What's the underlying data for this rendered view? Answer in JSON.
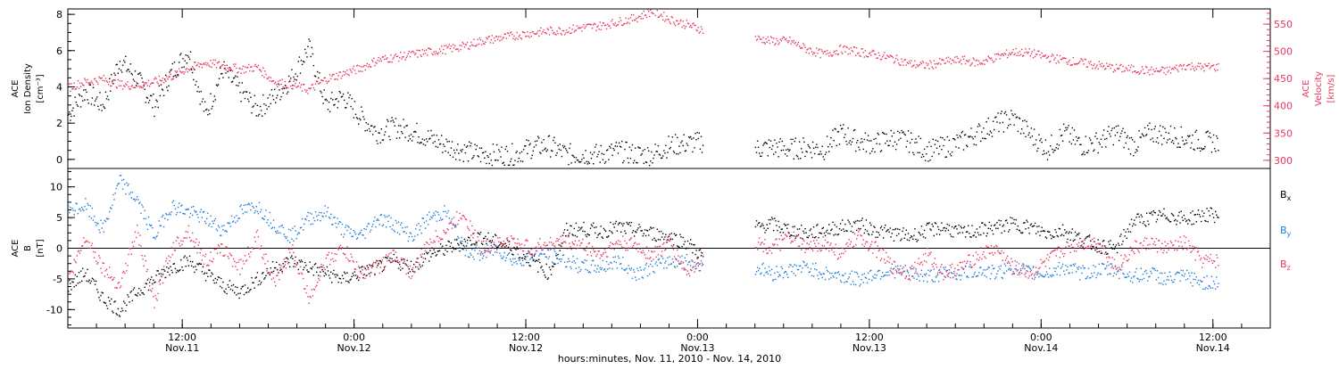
{
  "chart_data": [
    {
      "type": "scatter",
      "panel": "top",
      "ylabel_lines": [
        "ACE",
        "Ion Density",
        "[cm⁻³]"
      ],
      "ylim": [
        -0.5,
        8.3
      ],
      "yticks": [
        0,
        2,
        4,
        6,
        8
      ],
      "right_axis": {
        "label_lines": [
          "ACE",
          "Velocity",
          "[km/s]"
        ],
        "ylim": [
          285,
          578
        ],
        "yticks": [
          300,
          350,
          400,
          450,
          500,
          550
        ],
        "color": "#e8365d"
      },
      "series": [
        {
          "name": "",
          "color": "#000000",
          "axis": "left",
          "x": [
            0,
            0.05,
            0.1,
            0.15,
            0.2,
            0.25,
            0.3,
            0.35,
            0.4,
            0.45,
            0.5,
            0.55,
            0.6,
            0.65,
            0.7,
            0.75,
            0.8,
            0.85,
            0.9,
            0.95,
            1.0,
            1.05,
            1.1,
            1.15,
            1.2,
            1.25,
            1.3,
            1.35,
            1.4,
            1.45,
            1.5,
            1.55,
            1.6,
            1.65,
            1.7,
            1.75,
            1.8,
            1.85,
            2.0,
            2.05,
            2.1,
            2.15,
            2.2,
            2.25,
            2.3,
            2.35,
            2.4,
            2.45,
            2.5,
            2.55,
            2.6,
            2.65,
            2.7,
            2.75,
            2.8,
            2.85,
            2.9,
            2.95,
            3.0,
            3.05,
            3.1,
            3.15,
            3.2,
            3.25,
            3.3
          ],
          "y": [
            2.5,
            3.8,
            3.0,
            5.5,
            4.5,
            3.0,
            4.8,
            6.0,
            2.5,
            5.0,
            3.8,
            2.8,
            3.5,
            4.5,
            6.2,
            3.0,
            3.5,
            2.4,
            1.5,
            1.8,
            1.6,
            1.2,
            0.8,
            0.5,
            0.3,
            0.3,
            0.3,
            0.7,
            0.8,
            0.3,
            0.3,
            0.3,
            0.5,
            0.3,
            0.3,
            0.8,
            0.9,
            1.0,
            0.6,
            0.7,
            0.6,
            0.7,
            0.6,
            1.5,
            1.0,
            0.9,
            1.2,
            1.0,
            0.5,
            0.7,
            1.0,
            1.5,
            2.0,
            2.3,
            1.4,
            0.6,
            1.5,
            0.8,
            1.0,
            1.5,
            0.8,
            1.5,
            1.4,
            1.2,
            1.0
          ]
        },
        {
          "name": "",
          "color": "#e8365d",
          "axis": "right",
          "x": [
            0,
            0.05,
            0.1,
            0.15,
            0.2,
            0.25,
            0.3,
            0.35,
            0.4,
            0.45,
            0.5,
            0.55,
            0.6,
            0.65,
            0.7,
            0.75,
            0.8,
            0.85,
            0.9,
            0.95,
            1.0,
            1.05,
            1.1,
            1.15,
            1.2,
            1.25,
            1.3,
            1.35,
            1.4,
            1.45,
            1.5,
            1.55,
            1.6,
            1.65,
            1.7,
            1.75,
            1.8,
            1.85,
            2.0,
            2.05,
            2.1,
            2.15,
            2.2,
            2.25,
            2.3,
            2.35,
            2.4,
            2.45,
            2.5,
            2.55,
            2.6,
            2.65,
            2.7,
            2.75,
            2.8,
            2.85,
            2.9,
            2.95,
            3.0,
            3.05,
            3.1,
            3.15,
            3.2,
            3.25,
            3.3
          ],
          "y": [
            435,
            445,
            450,
            440,
            438,
            445,
            455,
            470,
            480,
            475,
            468,
            472,
            445,
            440,
            430,
            450,
            460,
            470,
            485,
            490,
            495,
            500,
            505,
            510,
            520,
            525,
            530,
            535,
            538,
            540,
            545,
            548,
            555,
            562,
            575,
            560,
            550,
            540,
            525,
            520,
            520,
            505,
            495,
            505,
            500,
            495,
            488,
            478,
            475,
            482,
            485,
            480,
            490,
            500,
            498,
            490,
            485,
            480,
            475,
            470,
            468,
            465,
            465,
            475,
            472
          ]
        }
      ],
      "gaps": [
        [
          1.85,
          2.0
        ]
      ]
    },
    {
      "type": "scatter",
      "panel": "bottom",
      "ylabel_lines": [
        "ACE",
        "B",
        "[nT]"
      ],
      "ylim": [
        -13,
        13
      ],
      "yticks": [
        -10,
        -5,
        0,
        5,
        10
      ],
      "zero_line": true,
      "series": [
        {
          "name": "Bₓ",
          "legend_main": "B",
          "legend_sub": "x",
          "color": "#000000",
          "x": [
            0,
            0.05,
            0.1,
            0.15,
            0.2,
            0.25,
            0.3,
            0.35,
            0.4,
            0.45,
            0.5,
            0.55,
            0.6,
            0.65,
            0.7,
            0.75,
            0.8,
            0.85,
            0.9,
            0.95,
            1.0,
            1.05,
            1.1,
            1.15,
            1.2,
            1.25,
            1.3,
            1.35,
            1.4,
            1.45,
            1.5,
            1.55,
            1.6,
            1.65,
            1.7,
            1.75,
            1.8,
            1.85,
            2.0,
            2.05,
            2.1,
            2.15,
            2.2,
            2.25,
            2.3,
            2.35,
            2.4,
            2.45,
            2.5,
            2.55,
            2.6,
            2.65,
            2.7,
            2.75,
            2.8,
            2.85,
            2.9,
            2.95,
            3.0,
            3.05,
            3.1,
            3.15,
            3.2,
            3.25,
            3.3
          ],
          "y": [
            -6,
            -4,
            -8,
            -10,
            -7,
            -5,
            -3,
            -2,
            -4,
            -6,
            -7,
            -5,
            -3,
            -2,
            -3,
            -4,
            -5,
            -4,
            -3,
            -2,
            -3,
            -1,
            0,
            1,
            2,
            1,
            0,
            -2,
            -4,
            3,
            3.2,
            2.8,
            3.5,
            3.0,
            2.5,
            2.0,
            1.0,
            -1.5,
            3.5,
            4.0,
            3.0,
            2.5,
            3.0,
            3.5,
            4.0,
            3.0,
            2.5,
            2.0,
            3.0,
            3.5,
            2.5,
            3.0,
            3.5,
            4.0,
            3.5,
            2.5,
            3.0,
            1.5,
            0.5,
            0.0,
            4.5,
            5.0,
            5.5,
            4.8,
            5.5
          ]
        },
        {
          "name": "Bᵧ",
          "legend_main": "B",
          "legend_sub": "y",
          "color": "#1e7ad6",
          "x": [
            0,
            0.05,
            0.1,
            0.15,
            0.2,
            0.25,
            0.3,
            0.35,
            0.4,
            0.45,
            0.5,
            0.55,
            0.6,
            0.65,
            0.7,
            0.75,
            0.8,
            0.85,
            0.9,
            0.95,
            1.0,
            1.05,
            1.1,
            1.15,
            1.2,
            1.25,
            1.3,
            1.35,
            1.4,
            1.45,
            1.5,
            1.55,
            1.6,
            1.65,
            1.7,
            1.75,
            1.8,
            1.85,
            2.0,
            2.05,
            2.1,
            2.15,
            2.2,
            2.25,
            2.3,
            2.35,
            2.4,
            2.45,
            2.5,
            2.55,
            2.6,
            2.65,
            2.7,
            2.75,
            2.8,
            2.85,
            2.9,
            2.95,
            3.0,
            3.05,
            3.1,
            3.15,
            3.2,
            3.25,
            3.3
          ],
          "y": [
            6,
            7,
            3,
            11,
            8,
            2,
            7,
            6,
            5,
            3,
            6,
            7,
            4,
            2,
            5,
            6,
            3,
            2,
            5,
            4,
            2,
            5,
            6,
            0,
            -1,
            0,
            -2,
            -1,
            -1,
            -2,
            -3,
            -3,
            -2,
            -4,
            -3,
            -2,
            -2,
            -3,
            -3,
            -4,
            -3.5,
            -3,
            -4,
            -4.5,
            -5,
            -4,
            -3.5,
            -4,
            -4.5,
            -4,
            -4,
            -3.5,
            -4,
            -3,
            -4,
            -4,
            -3,
            -4,
            -3.5,
            -3.5,
            -4.5,
            -4.0,
            -5.0,
            -4.5,
            -5.5
          ]
        },
        {
          "name": "Bᴢ",
          "legend_main": "B",
          "legend_sub": "z",
          "color": "#e8365d",
          "x": [
            0,
            0.05,
            0.1,
            0.15,
            0.2,
            0.25,
            0.3,
            0.35,
            0.4,
            0.45,
            0.5,
            0.55,
            0.6,
            0.65,
            0.7,
            0.75,
            0.8,
            0.85,
            0.9,
            0.95,
            1.0,
            1.05,
            1.1,
            1.15,
            1.2,
            1.25,
            1.3,
            1.35,
            1.4,
            1.45,
            1.5,
            1.55,
            1.6,
            1.65,
            1.7,
            1.75,
            1.8,
            1.85,
            2.0,
            2.05,
            2.1,
            2.15,
            2.2,
            2.25,
            2.3,
            2.35,
            2.4,
            2.45,
            2.5,
            2.55,
            2.6,
            2.65,
            2.7,
            2.75,
            2.8,
            2.85,
            2.9,
            2.95,
            3.0,
            3.05,
            3.1,
            3.15,
            3.2,
            3.25,
            3.3
          ],
          "y": [
            -5,
            2,
            -3,
            -6,
            3,
            -9,
            0,
            3,
            -2,
            0,
            -3,
            2,
            -6,
            0,
            -8,
            -2,
            0,
            -4,
            -3,
            -1,
            -4,
            1,
            3,
            6,
            0,
            1,
            1,
            0,
            1,
            1,
            0.5,
            -1,
            1,
            0.5,
            -1,
            1,
            -4,
            -1,
            1,
            0,
            2,
            0,
            1,
            -1,
            2,
            0,
            -3,
            -4,
            -1,
            -4,
            -3,
            -1,
            0,
            -3,
            -4,
            -2,
            0,
            1,
            1,
            -3,
            0,
            1,
            0,
            1,
            -2
          ]
        }
      ],
      "gaps": [
        [
          1.85,
          2.0
        ]
      ]
    }
  ],
  "x_axis": {
    "tick_labels": [
      {
        "time": "12:00",
        "day": "Nov.11"
      },
      {
        "time": "0:00",
        "day": "Nov.12"
      },
      {
        "time": "12:00",
        "day": "Nov.12"
      },
      {
        "time": "0:00",
        "day": "Nov.13"
      },
      {
        "time": "12:00",
        "day": "Nov.13"
      },
      {
        "time": "0:00",
        "day": "Nov.14"
      },
      {
        "time": "12:00",
        "day": "Nov.14"
      }
    ],
    "label": "hours:minutes, Nov. 11, 2010 - Nov. 14, 2010"
  }
}
